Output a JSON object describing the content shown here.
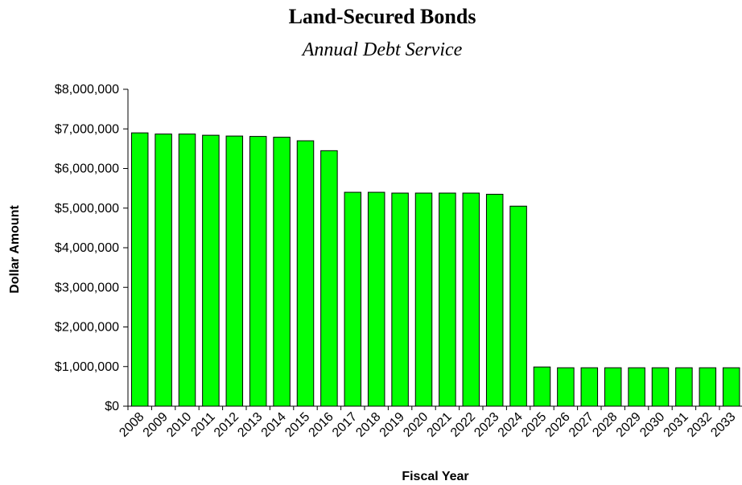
{
  "chart_data": {
    "type": "bar",
    "title": "Land-Secured Bonds",
    "subtitle": "Annual Debt Service",
    "xlabel": "Fiscal Year",
    "ylabel": "Dollar Amount",
    "ylim": [
      0,
      8000000
    ],
    "y_ticks": [
      "$0",
      "$1,000,000",
      "$2,000,000",
      "$3,000,000",
      "$4,000,000",
      "$5,000,000",
      "$6,000,000",
      "$7,000,000",
      "$8,000,000"
    ],
    "categories": [
      "2008",
      "2009",
      "2010",
      "2011",
      "2012",
      "2013",
      "2014",
      "2015",
      "2016",
      "2017",
      "2018",
      "2019",
      "2020",
      "2021",
      "2022",
      "2023",
      "2024",
      "2025",
      "2026",
      "2027",
      "2028",
      "2029",
      "2030",
      "2031",
      "2032",
      "2033"
    ],
    "values": [
      6900000,
      6870000,
      6870000,
      6840000,
      6820000,
      6810000,
      6790000,
      6700000,
      6450000,
      5400000,
      5400000,
      5380000,
      5380000,
      5380000,
      5380000,
      5350000,
      5050000,
      990000,
      970000,
      970000,
      970000,
      970000,
      970000,
      970000,
      970000,
      970000
    ],
    "bar_color": "#00ff00",
    "grid": false,
    "legend": "none"
  }
}
